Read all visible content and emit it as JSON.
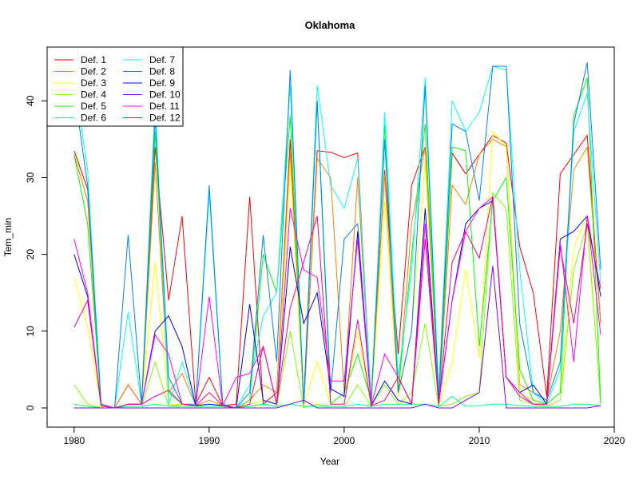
{
  "chart_data": {
    "type": "line",
    "title": "Oklahoma",
    "xlabel": "Year",
    "ylabel": "Tem_min",
    "xlim": [
      1978,
      2020
    ],
    "ylim": [
      -2.5,
      47
    ],
    "xticks": [
      1980,
      1990,
      2000,
      2010,
      2020
    ],
    "yticks": [
      0,
      10,
      20,
      30,
      40
    ],
    "legend_position": "top-left",
    "x": [
      1980,
      1981,
      1982,
      1983,
      1984,
      1985,
      1986,
      1987,
      1988,
      1989,
      1990,
      1991,
      1992,
      1993,
      1994,
      1995,
      1996,
      1997,
      1998,
      1999,
      2000,
      2001,
      2002,
      2003,
      2004,
      2005,
      2006,
      2007,
      2008,
      2009,
      2010,
      2011,
      2012,
      2013,
      2014,
      2015,
      2016,
      2017,
      2018,
      2019
    ],
    "series": [
      {
        "name": "Def. 1",
        "color": "#FF0000",
        "values": [
          33.5,
          28.5,
          0.2,
          0,
          3,
          0.5,
          34,
          14,
          25,
          0.5,
          4,
          0.3,
          0.5,
          27.5,
          0.5,
          2,
          35,
          0,
          33.5,
          33.3,
          32.6,
          33.2,
          0.5,
          31,
          7,
          29,
          34,
          0.5,
          33.2,
          30.5,
          33,
          35.5,
          34.5,
          21,
          15,
          1.5,
          30.5,
          33,
          35.5,
          11
        ]
      },
      {
        "name": "Def. 2",
        "color": "#FF8000",
        "values": [
          33,
          27,
          0.3,
          0,
          3,
          0.5,
          32,
          2,
          4.5,
          0.3,
          1,
          0.3,
          0,
          1,
          3,
          2,
          33.5,
          0.5,
          32.5,
          30,
          2,
          30,
          0.5,
          30.5,
          2,
          24,
          34,
          0.3,
          29,
          26.5,
          33,
          35,
          34,
          3,
          2,
          1,
          10,
          31,
          34,
          11
        ]
      },
      {
        "name": "Def. 3",
        "color": "#FFFF00",
        "values": [
          17,
          10.5,
          0.2,
          0,
          0.5,
          0.5,
          19,
          0.5,
          0.5,
          0.3,
          0.5,
          0.3,
          0,
          0.5,
          1,
          0.5,
          32,
          0.2,
          6,
          0.5,
          0.5,
          10,
          0.3,
          27,
          1.5,
          10,
          32,
          0.3,
          6,
          18,
          6.5,
          36,
          34,
          2,
          1,
          0.5,
          2,
          21,
          25,
          0.5
        ]
      },
      {
        "name": "Def. 4",
        "color": "#80FF00",
        "values": [
          3,
          0.5,
          0,
          0,
          0.2,
          0.2,
          6,
          0.2,
          0.5,
          0.2,
          0.2,
          0.2,
          0,
          0.2,
          0.5,
          0.2,
          10,
          0,
          0.5,
          0.2,
          0.2,
          3,
          0.2,
          3,
          0.5,
          2,
          11,
          0.2,
          0.5,
          1.5,
          2,
          28,
          26,
          1,
          0.5,
          0.2,
          1,
          18,
          24,
          0.5
        ]
      },
      {
        "name": "Def. 5",
        "color": "#00FF00",
        "values": [
          33,
          24,
          0.3,
          0,
          0.5,
          0.5,
          36,
          2,
          0.5,
          0.3,
          0.5,
          0.3,
          0,
          1,
          20,
          15,
          38,
          0.5,
          40,
          0.5,
          2,
          7,
          1,
          37,
          2,
          20,
          37,
          0.5,
          34,
          33.5,
          8,
          27,
          30,
          5,
          1,
          0.5,
          2,
          38,
          43,
          0.5
        ]
      },
      {
        "name": "Def. 6",
        "color": "#00FF80",
        "values": [
          0.5,
          0.2,
          0,
          0,
          0.2,
          0.2,
          0.5,
          0.2,
          0.2,
          0.2,
          0.2,
          0.2,
          0,
          0.2,
          0.5,
          0.2,
          0.5,
          0.2,
          0.2,
          0.2,
          0.2,
          0.5,
          0.2,
          0.5,
          0.5,
          0.5,
          0.5,
          0.2,
          1.5,
          0.2,
          0.3,
          0.5,
          0.5,
          0.3,
          0.2,
          0.2,
          0.2,
          0.5,
          0.5,
          0.3
        ]
      },
      {
        "name": "Def. 7",
        "color": "#00FFFF",
        "values": [
          43,
          31,
          0.3,
          0,
          12.5,
          0.5,
          40,
          0.5,
          6,
          0.3,
          28,
          0.3,
          0,
          3,
          12,
          15,
          42,
          0.5,
          42,
          29,
          26,
          32.5,
          0.5,
          38.5,
          4,
          18,
          43,
          2,
          40,
          36,
          38.5,
          44.5,
          44,
          18,
          2,
          0.5,
          5,
          36,
          41,
          16
        ]
      },
      {
        "name": "Def. 8",
        "color": "#0080FF",
        "values": [
          41.5,
          29,
          0.5,
          0,
          22.5,
          0.5,
          38,
          4,
          0.5,
          0.5,
          29,
          0.5,
          0,
          2,
          22.5,
          6,
          44,
          0.5,
          40,
          2,
          22,
          24,
          0.5,
          35,
          2,
          10,
          42,
          1,
          37,
          36,
          27,
          44.5,
          44.5,
          11,
          2,
          1,
          6,
          37,
          45,
          18
        ]
      },
      {
        "name": "Def. 9",
        "color": "#0000FF",
        "values": [
          20,
          14.5,
          0.3,
          0,
          0.5,
          0.5,
          10,
          12,
          8,
          0.3,
          0.5,
          0.3,
          0,
          13.5,
          1,
          0.5,
          21,
          11,
          15,
          2.5,
          1.5,
          23,
          0.3,
          3.5,
          1,
          0.5,
          26,
          0.5,
          14,
          24,
          26,
          27,
          4,
          2,
          3,
          0.5,
          22,
          23,
          25,
          14.5
        ]
      },
      {
        "name": "Def. 10",
        "color": "#8000FF",
        "values": [
          0,
          0,
          0,
          0,
          0,
          0,
          0,
          0,
          0,
          0,
          0,
          0,
          0,
          0,
          0,
          0,
          0.5,
          1,
          0,
          0,
          0,
          0,
          0,
          0,
          0,
          0,
          0.5,
          0,
          0,
          1,
          2,
          18.5,
          0,
          0,
          0,
          0,
          0,
          0,
          0,
          0.3
        ]
      },
      {
        "name": "Def. 11",
        "color": "#FF00FF",
        "values": [
          22,
          15,
          0.3,
          0,
          0.5,
          0.5,
          9.5,
          7,
          0.5,
          0.3,
          14.5,
          0.3,
          4,
          4.5,
          8,
          0.5,
          26,
          18,
          17,
          3.5,
          3.5,
          22,
          0.3,
          7,
          4,
          0.5,
          24,
          0.5,
          14,
          23,
          26,
          27.5,
          4,
          2,
          0.5,
          0.5,
          21.5,
          6,
          25,
          9.5
        ]
      },
      {
        "name": "Def. 12",
        "color": "#FF0080",
        "values": [
          10.5,
          14,
          0.3,
          0,
          0.5,
          0.5,
          1.5,
          2.3,
          0.5,
          0.3,
          2,
          0.3,
          0,
          0.5,
          8,
          0.5,
          13,
          19,
          25,
          0.5,
          0.5,
          11.5,
          0.3,
          1,
          4,
          0.5,
          22,
          0.5,
          19,
          23,
          19.5,
          27.5,
          4,
          1.5,
          0.5,
          0.5,
          21,
          11,
          24,
          15.5
        ]
      }
    ]
  }
}
